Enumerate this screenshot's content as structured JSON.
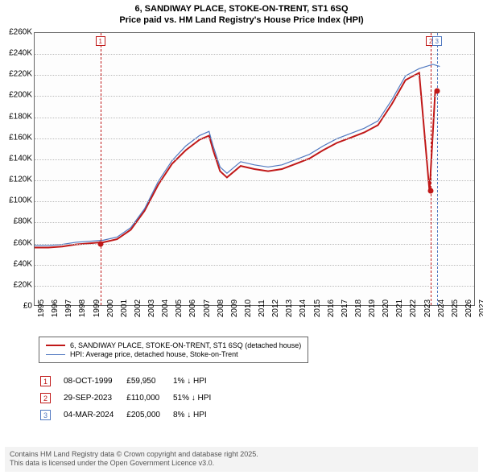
{
  "title_line1": "6, SANDIWAY PLACE, STOKE-ON-TRENT, ST1 6SQ",
  "title_line2": "Price paid vs. HM Land Registry's House Price Index (HPI)",
  "chart": {
    "type": "line",
    "background_color": "#fdfdfd",
    "grid_color": "#bbbbbb",
    "x_years": [
      1995,
      1996,
      1997,
      1998,
      1999,
      2000,
      2001,
      2002,
      2003,
      2004,
      2005,
      2006,
      2007,
      2008,
      2009,
      2010,
      2011,
      2012,
      2013,
      2014,
      2015,
      2016,
      2017,
      2018,
      2019,
      2020,
      2021,
      2022,
      2023,
      2024,
      2025,
      2026,
      2027
    ],
    "ylim": [
      0,
      260000
    ],
    "ytick_step": 20000,
    "ytick_prefix": "£",
    "ytick_suffix_k": "K",
    "series": [
      {
        "name": "price_paid",
        "color": "#c01818",
        "width": 2,
        "legend": "6, SANDIWAY PLACE, STOKE-ON-TRENT, ST1 6SQ (detached house)",
        "points_by_year": {
          "1995": 55000,
          "1996": 55000,
          "1997": 56000,
          "1998": 58000,
          "1999": 59000,
          "1999.77": 59950,
          "2000": 60000,
          "2001": 63000,
          "2002": 72000,
          "2003": 90000,
          "2004": 115000,
          "2005": 135000,
          "2006": 148000,
          "2007": 158000,
          "2007.7": 162000,
          "2008": 148000,
          "2008.5": 128000,
          "2009": 122000,
          "2010": 133000,
          "2011": 130000,
          "2012": 128000,
          "2013": 130000,
          "2014": 135000,
          "2015": 140000,
          "2016": 148000,
          "2017": 155000,
          "2018": 160000,
          "2019": 165000,
          "2020": 172000,
          "2021": 192000,
          "2022": 215000,
          "2023": 222000,
          "2023.74": 110000,
          "2023.76": 110000,
          "2024.17": 205000,
          "2024.3": 205000
        }
      },
      {
        "name": "hpi",
        "color": "#5078c0",
        "width": 1.2,
        "legend": "HPI: Average price, detached house, Stoke-on-Trent",
        "points_by_year": {
          "1995": 57000,
          "1996": 57000,
          "1997": 58000,
          "1998": 60000,
          "1999": 61000,
          "2000": 62000,
          "2001": 65000,
          "2002": 74000,
          "2003": 92000,
          "2004": 118000,
          "2005": 138000,
          "2006": 152000,
          "2007": 162000,
          "2007.7": 166000,
          "2008": 152000,
          "2008.5": 132000,
          "2009": 126000,
          "2010": 137000,
          "2011": 134000,
          "2012": 132000,
          "2013": 134000,
          "2014": 139000,
          "2015": 144000,
          "2016": 152000,
          "2017": 159000,
          "2018": 164000,
          "2019": 169000,
          "2020": 176000,
          "2021": 196000,
          "2022": 219000,
          "2023": 226000,
          "2024": 230000,
          "2024.5": 228000
        }
      }
    ],
    "sale_dots": [
      {
        "year": 1999.77,
        "value": 59950,
        "color": "#c01818"
      },
      {
        "year": 2023.745,
        "value": 110000,
        "color": "#c01818"
      },
      {
        "year": 2024.18,
        "value": 205000,
        "color": "#c01818"
      }
    ],
    "events": [
      {
        "n": "1",
        "year": 1999.77,
        "color": "#c01818"
      },
      {
        "n": "2",
        "year": 2023.745,
        "color": "#c01818"
      },
      {
        "n": "3",
        "year": 2024.18,
        "color": "#5078c0"
      }
    ]
  },
  "legend_items": [
    {
      "color": "#c01818",
      "width": 2,
      "text": "6, SANDIWAY PLACE, STOKE-ON-TRENT, ST1 6SQ (detached house)"
    },
    {
      "color": "#5078c0",
      "width": 1.2,
      "text": "HPI: Average price, detached house, Stoke-on-Trent"
    }
  ],
  "events_table": [
    {
      "n": "1",
      "color": "#c01818",
      "date": "08-OCT-1999",
      "price": "£59,950",
      "delta": "1% ↓ HPI"
    },
    {
      "n": "2",
      "color": "#c01818",
      "date": "29-SEP-2023",
      "price": "£110,000",
      "delta": "51% ↓ HPI"
    },
    {
      "n": "3",
      "color": "#5078c0",
      "date": "04-MAR-2024",
      "price": "£205,000",
      "delta": "8% ↓ HPI"
    }
  ],
  "footer_line1": "Contains HM Land Registry data © Crown copyright and database right 2025.",
  "footer_line2": "This data is licensed under the Open Government Licence v3.0."
}
